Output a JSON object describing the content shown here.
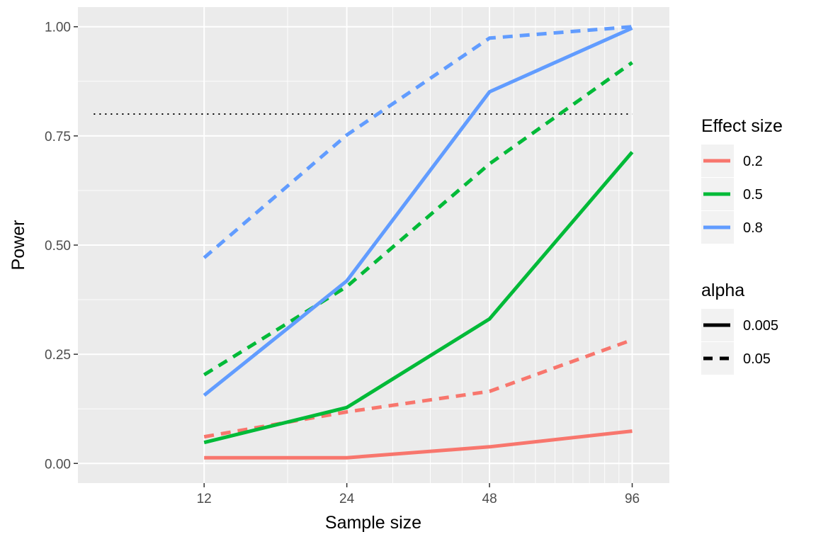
{
  "chart_data": {
    "type": "line",
    "xlabel": "Sample size",
    "ylabel": "Power",
    "x": [
      12,
      24,
      48,
      96
    ],
    "x_ticks": [
      "12",
      "24",
      "48",
      "96"
    ],
    "x_scale": "log2",
    "xlim": [
      6.5,
      115
    ],
    "ylim": [
      -0.045,
      1.045
    ],
    "y_ticks": [
      "0.00",
      "0.25",
      "0.50",
      "0.75",
      "1.00"
    ],
    "y_tick_values": [
      0,
      0.25,
      0.5,
      0.75,
      1.0
    ],
    "reference_line": {
      "y": 0.8,
      "style": "dotted",
      "color": "#000000"
    },
    "grid": true,
    "panel_background": "#ebebeb",
    "legend_position": "right",
    "series": [
      {
        "effect_size": "0.2",
        "alpha": "0.005",
        "color": "#f8766d",
        "linetype": "solid",
        "values": [
          0.013,
          0.013,
          0.038,
          0.074
        ]
      },
      {
        "effect_size": "0.2",
        "alpha": "0.05",
        "color": "#f8766d",
        "linetype": "dashed",
        "values": [
          0.061,
          0.118,
          0.165,
          0.283
        ]
      },
      {
        "effect_size": "0.5",
        "alpha": "0.005",
        "color": "#00ba38",
        "linetype": "solid",
        "values": [
          0.048,
          0.128,
          0.331,
          0.713
        ]
      },
      {
        "effect_size": "0.5",
        "alpha": "0.05",
        "color": "#00ba38",
        "linetype": "dashed",
        "values": [
          0.203,
          0.405,
          0.686,
          0.918
        ]
      },
      {
        "effect_size": "0.8",
        "alpha": "0.005",
        "color": "#619cff",
        "linetype": "solid",
        "values": [
          0.156,
          0.418,
          0.851,
          0.997
        ]
      },
      {
        "effect_size": "0.8",
        "alpha": "0.05",
        "color": "#619cff",
        "linetype": "dashed",
        "values": [
          0.471,
          0.752,
          0.974,
          1.0
        ]
      }
    ],
    "legends": [
      {
        "title": "Effect size",
        "items": [
          {
            "label": "0.2",
            "color": "#f8766d",
            "linetype": "solid"
          },
          {
            "label": "0.5",
            "color": "#00ba38",
            "linetype": "solid"
          },
          {
            "label": "0.8",
            "color": "#619cff",
            "linetype": "solid"
          }
        ]
      },
      {
        "title": "alpha",
        "items": [
          {
            "label": "0.005",
            "color": "#000000",
            "linetype": "solid"
          },
          {
            "label": "0.05",
            "color": "#000000",
            "linetype": "dashed"
          }
        ]
      }
    ]
  }
}
